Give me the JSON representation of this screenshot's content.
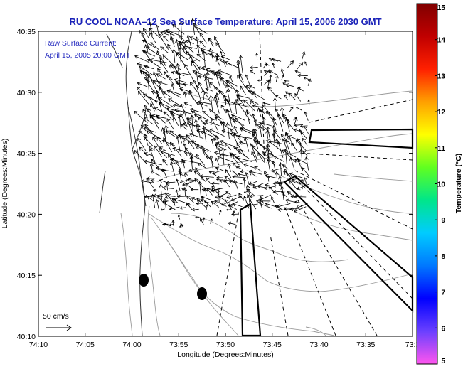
{
  "title": "RU COOL  NOAA–12  Sea Surface Temperature:  April 15, 2006 2030 GMT",
  "annotation": {
    "line1": "Raw Surface Current:",
    "line2": "April 15, 2005 20:00 GMT"
  },
  "scale_arrow_label": "50 cm/s",
  "x_axis": {
    "title": "Longitude (Degrees:Minutes)",
    "ticks": [
      "74:10",
      "74:05",
      "74:00",
      "73:55",
      "73:50",
      "73:45",
      "73:40",
      "73:35",
      "73:3"
    ]
  },
  "y_axis": {
    "title": "Latitude (Degrees:Minutes)",
    "ticks": [
      "40:10",
      "40:15",
      "40:20",
      "40:25",
      "40:30",
      "40:35"
    ]
  },
  "colorbar": {
    "title": "Temperature (°C)",
    "ticks": [
      "5",
      "6",
      "7",
      "8",
      "9",
      "10",
      "11",
      "12",
      "13",
      "14",
      "15"
    ],
    "colors": [
      "#ff55ee",
      "#6a40ff",
      "#0000ff",
      "#0078ff",
      "#00ccff",
      "#00e68a",
      "#60ff20",
      "#ffff00",
      "#ffa000",
      "#ff2000",
      "#c00000",
      "#800000"
    ]
  }
}
